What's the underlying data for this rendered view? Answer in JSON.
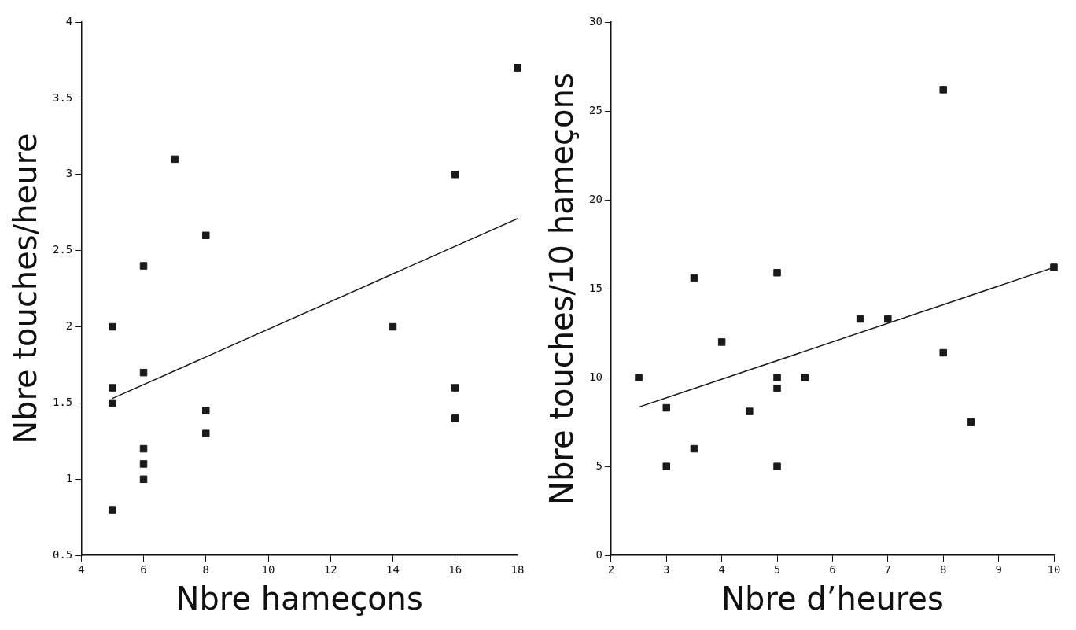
{
  "chart_data": [
    {
      "type": "scatter",
      "xlabel": "Nbre hameçons",
      "ylabel": "Nbre touches/heure",
      "xlim": [
        4,
        18
      ],
      "xticks": [
        4,
        6,
        8,
        10,
        12,
        14,
        16,
        18
      ],
      "ylim": [
        0.5,
        4
      ],
      "yticks": [
        0.5,
        1,
        1.5,
        2,
        2.5,
        3,
        3.5,
        4
      ],
      "series": [
        {
          "marker": "square",
          "color": "#1a1a1a",
          "x": [
            5,
            5,
            5,
            5,
            6,
            6,
            6,
            6,
            6,
            7,
            8,
            8,
            8,
            14,
            16,
            16,
            16,
            18
          ],
          "values": [
            2.0,
            1.6,
            1.5,
            0.8,
            2.4,
            1.7,
            1.2,
            1.1,
            1.0,
            3.1,
            2.6,
            1.45,
            1.3,
            2.0,
            3.0,
            1.6,
            1.4,
            3.7
          ]
        },
        {
          "type": "line",
          "color": "#1a1a1a",
          "x": [
            5,
            18
          ],
          "values": [
            1.53,
            2.71
          ]
        }
      ]
    },
    {
      "type": "scatter",
      "xlabel": "Nbre d’heures",
      "ylabel": "Nbre touches/10 hameçons",
      "xlim": [
        2,
        10
      ],
      "xticks": [
        2,
        3,
        4,
        5,
        6,
        7,
        8,
        9,
        10
      ],
      "ylim": [
        0,
        30
      ],
      "yticks": [
        0,
        5,
        10,
        15,
        20,
        25,
        30
      ],
      "series": [
        {
          "marker": "square",
          "color": "#1a1a1a",
          "x": [
            2.5,
            3,
            3,
            3.5,
            3.5,
            4,
            4.5,
            5,
            5,
            5,
            5,
            5.5,
            6.5,
            7,
            8,
            8,
            8.5,
            10
          ],
          "values": [
            10,
            8.3,
            5,
            15.6,
            6,
            12,
            8.1,
            15.9,
            10,
            9.4,
            5,
            10,
            13.3,
            13.3,
            26.2,
            11.4,
            7.5,
            16.2
          ]
        },
        {
          "type": "line",
          "color": "#1a1a1a",
          "x": [
            2.5,
            10
          ],
          "values": [
            8.34,
            16.2
          ]
        }
      ]
    }
  ]
}
